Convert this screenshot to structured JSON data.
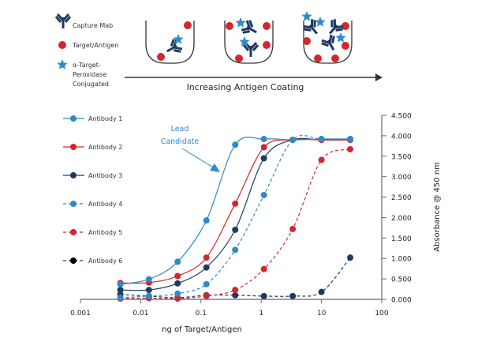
{
  "diagram": {
    "legend": [
      {
        "icon": "antibody-icon",
        "label": "Capture Mab"
      },
      {
        "icon": "red-circle-icon",
        "label": "Target/Antigen"
      },
      {
        "icon": "star-icon",
        "label_lines": [
          "α-Target-",
          "Peroxidase",
          "Conjugated"
        ]
      }
    ],
    "arrow_label": "Increasing Antigen Coating"
  },
  "chart_data": {
    "type": "line",
    "xlabel": "ng of Target/Antigen",
    "ylabel": "Absorbance @ 450 nm",
    "xscale": "log",
    "xlim": [
      0.001,
      100
    ],
    "ylim": [
      0,
      4.5
    ],
    "x_ticks": [
      "0.001",
      "0.01",
      "0.1",
      "1",
      "10",
      "100"
    ],
    "y_ticks": [
      "0.000",
      "0.500",
      "1.000",
      "1.500",
      "2.000",
      "2.500",
      "3.000",
      "3.500",
      "4.000",
      "4.500"
    ],
    "y_axis_side": "right",
    "legend_placement": "left",
    "grid": false,
    "x": [
      0.0046,
      0.0137,
      0.041,
      0.123,
      0.37,
      1.11,
      3.33,
      10,
      30
    ],
    "series": [
      {
        "name": "Antibody 1",
        "color": "#2f8ac6",
        "dashed": false,
        "values": [
          0.37,
          0.49,
          0.92,
          1.93,
          3.78,
          3.92,
          3.9,
          3.92,
          3.92
        ]
      },
      {
        "name": "Antibody 2",
        "color": "#d0282e",
        "dashed": false,
        "values": [
          0.4,
          0.41,
          0.57,
          1.02,
          2.34,
          3.72,
          3.9,
          3.9,
          3.9
        ]
      },
      {
        "name": "Antibody 3",
        "color": "#1f3a60",
        "dashed": false,
        "values": [
          0.23,
          0.23,
          0.39,
          0.78,
          1.7,
          3.45,
          3.9,
          3.9,
          3.9
        ]
      },
      {
        "name": "Antibody 4",
        "color": "#2f8ac6",
        "dashed": true,
        "values": [
          0.04,
          0.08,
          0.14,
          0.37,
          1.21,
          2.55,
          3.9,
          3.92,
          3.92
        ]
      },
      {
        "name": "Antibody 5",
        "color": "#d0282e",
        "dashed": true,
        "values": [
          0.02,
          0.03,
          0.02,
          0.08,
          0.23,
          0.74,
          1.72,
          3.41,
          3.67
        ]
      },
      {
        "name": "Antibody 6",
        "color": "#1f3a60",
        "legend_marker_color": "#000000",
        "dashed": true,
        "values": [
          0.12,
          0.08,
          0.04,
          0.1,
          0.1,
          0.08,
          0.08,
          0.18,
          1.02
        ]
      }
    ],
    "annotations": [
      {
        "text_lines": [
          "Lead",
          "Candidate"
        ],
        "target": "Antibody 1",
        "color": "#2f8ac6"
      }
    ]
  }
}
